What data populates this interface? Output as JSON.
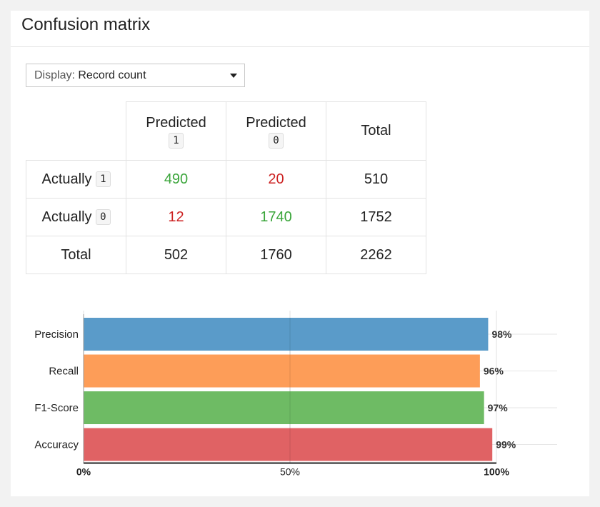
{
  "card": {
    "title": "Confusion matrix"
  },
  "display_select": {
    "label": "Display:",
    "value": "Record count"
  },
  "matrix": {
    "predicted_label": "Predicted",
    "actually_label": "Actually",
    "total_label": "Total",
    "classes": [
      "1",
      "0"
    ],
    "rows": [
      {
        "class": "1",
        "cells": [
          "490",
          "20"
        ],
        "total": "510"
      },
      {
        "class": "0",
        "cells": [
          "12",
          "1740"
        ],
        "total": "1752"
      }
    ],
    "column_totals": [
      "502",
      "1760"
    ],
    "grand_total": "2262",
    "colors": {
      "correct": "#3aa53a",
      "incorrect": "#cc2222"
    }
  },
  "chart_data": {
    "type": "bar",
    "orientation": "horizontal",
    "categories": [
      "Precision",
      "Recall",
      "F1-Score",
      "Accuracy"
    ],
    "values": [
      98,
      96,
      97,
      99
    ],
    "value_labels": [
      "98%",
      "96%",
      "97%",
      "99%"
    ],
    "colors": [
      "#5a9bc9",
      "#fd9d58",
      "#6ebb64",
      "#e06264"
    ],
    "xlim": [
      0,
      100
    ],
    "x_ticks": [
      0,
      50,
      100
    ],
    "x_tick_labels": [
      "0%",
      "50%",
      "100%"
    ],
    "grid": true
  }
}
